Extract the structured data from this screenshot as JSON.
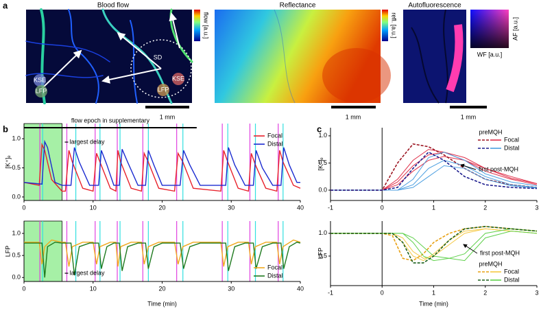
{
  "panels": [
    "a",
    "b",
    "c"
  ],
  "images": [
    {
      "title": "Blood flow",
      "colorbar": "flow [a.u.]",
      "scale": "1 mm"
    },
    {
      "title": "Reflectance",
      "colorbar": "refl. [a.u.]",
      "scale": "1 mm"
    },
    {
      "title": "Autofluorescence",
      "colorbar_y": "AF [a.u.]",
      "colorbar_x": "WF [a.u.]",
      "scale": "1 mm"
    }
  ],
  "blood_flow_labels": {
    "sd": "SD",
    "kse": [
      "KSE",
      "KSE"
    ],
    "lfp": [
      "LFP",
      "LFP"
    ]
  },
  "chart_data": [
    {
      "type": "line",
      "ylabel": "[K⁺]ₑ",
      "xlim": [
        0,
        40
      ],
      "ylim": [
        -0.06,
        1.26
      ],
      "xticks": [
        0,
        10,
        20,
        30,
        40
      ],
      "yticks": [
        {
          "value": 0,
          "label": "0.0"
        },
        {
          "value": 0.5,
          "label": "0.5"
        },
        {
          "value": 1,
          "label": "1.0"
        }
      ],
      "legend": "upper right",
      "epoch": {
        "label": "flow epoch in supplementary",
        "x": [
          0,
          25
        ]
      },
      "shade": {
        "x": [
          0,
          5.5
        ],
        "color": "#a6f0a6"
      },
      "event_lines": [
        {
          "color": "#e040e0",
          "x": [
            2.3,
            6.2,
            10.3,
            13.5,
            17.2,
            22.1,
            28.7,
            32.7,
            36.8
          ]
        },
        {
          "color": "#30e0e0",
          "x": [
            2.7,
            7.5,
            11.0,
            13.9,
            18.0,
            23.0,
            29.5,
            33.5,
            37.5
          ]
        }
      ],
      "annotation": "largest delay",
      "series": [
        {
          "name": "Focal",
          "color": "#e8202a",
          "x": [
            0,
            2.2,
            2.6,
            3.0,
            4.0,
            5.5,
            6.0,
            6.5,
            7.0,
            8.5,
            10.0,
            10.5,
            11.0,
            12.5,
            13.3,
            13.6,
            14.0,
            15.5,
            17.0,
            17.4,
            18.0,
            19.5,
            21.8,
            22.3,
            23.0,
            24.5,
            28.5,
            28.9,
            29.5,
            31.0,
            32.5,
            32.9,
            33.5,
            35.0,
            36.6,
            37.0,
            37.5,
            39.0,
            40
          ],
          "values": [
            0.25,
            0.2,
            0.9,
            0.8,
            0.3,
            0.1,
            0.1,
            0.8,
            0.6,
            0.15,
            0.1,
            0.75,
            0.6,
            0.15,
            0.1,
            0.8,
            0.6,
            0.15,
            0.1,
            0.75,
            0.6,
            0.15,
            0.1,
            0.75,
            0.6,
            0.15,
            0.1,
            0.8,
            0.6,
            0.15,
            0.1,
            0.75,
            0.55,
            0.15,
            0.1,
            0.8,
            0.6,
            0.2,
            0.15
          ]
        },
        {
          "name": "Distal",
          "color": "#1a2ad0",
          "x": [
            0,
            2.6,
            3.0,
            3.4,
            4.5,
            5.5,
            6.8,
            7.3,
            8.0,
            9.5,
            10.8,
            11.2,
            12.0,
            13.0,
            13.8,
            14.2,
            15.0,
            16.5,
            17.6,
            18.0,
            18.8,
            20.0,
            22.6,
            23.1,
            24.0,
            25.5,
            29.2,
            29.6,
            30.5,
            32.0,
            33.2,
            33.6,
            34.5,
            36.0,
            37.2,
            37.6,
            38.4,
            39.5,
            40
          ],
          "values": [
            0.25,
            0.22,
            0.95,
            0.85,
            0.25,
            0.2,
            0.2,
            0.85,
            0.6,
            0.2,
            0.2,
            0.8,
            0.55,
            0.2,
            0.2,
            0.82,
            0.6,
            0.2,
            0.2,
            0.8,
            0.55,
            0.2,
            0.2,
            0.8,
            0.55,
            0.2,
            0.2,
            0.85,
            0.55,
            0.2,
            0.2,
            0.8,
            0.5,
            0.2,
            0.2,
            0.85,
            0.55,
            0.25,
            0.25
          ]
        }
      ]
    },
    {
      "type": "line",
      "ylabel": "LFP",
      "xlabel": "Time (min)",
      "xlim": [
        0,
        40
      ],
      "ylim": [
        -0.09,
        1.28
      ],
      "xticks": [
        0,
        10,
        20,
        30,
        40
      ],
      "yticks": [
        {
          "value": 0,
          "label": "0.0"
        },
        {
          "value": 0.5,
          "label": "0.5"
        },
        {
          "value": 1,
          "label": "1.0"
        }
      ],
      "legend": "lower right",
      "shade": {
        "x": [
          0,
          5.5
        ],
        "color": "#a6f0a6"
      },
      "event_lines": [
        {
          "color": "#e040e0",
          "x": [
            2.3,
            6.2,
            10.3,
            13.5,
            17.2,
            22.1,
            28.7,
            32.7,
            36.8
          ]
        },
        {
          "color": "#30e0e0",
          "x": [
            2.7,
            7.5,
            11.0,
            13.9,
            18.0,
            23.0,
            29.5,
            33.5,
            37.5
          ]
        }
      ],
      "annotation": "largest delay",
      "series": [
        {
          "name": "Focal",
          "color": "#f0a81c",
          "x": [
            0,
            2.2,
            2.6,
            3.0,
            4.0,
            5.5,
            6.0,
            6.5,
            7.0,
            8.5,
            10.0,
            10.5,
            11.0,
            12.5,
            13.3,
            13.6,
            14.0,
            15.5,
            17.0,
            17.4,
            18.0,
            19.5,
            21.8,
            22.3,
            23.0,
            24.5,
            28.5,
            28.9,
            29.5,
            31.0,
            32.5,
            32.9,
            33.5,
            35.0,
            36.6,
            37.0,
            37.5,
            39.0,
            40
          ],
          "values": [
            0.8,
            0.8,
            0.3,
            0.7,
            0.85,
            0.8,
            0.8,
            0.25,
            0.7,
            0.8,
            0.8,
            0.3,
            0.7,
            0.8,
            0.8,
            0.25,
            0.7,
            0.8,
            0.8,
            0.3,
            0.7,
            0.8,
            0.8,
            0.3,
            0.7,
            0.8,
            0.8,
            0.25,
            0.7,
            0.8,
            0.8,
            0.3,
            0.7,
            0.8,
            0.8,
            0.3,
            0.7,
            0.85,
            0.8
          ]
        },
        {
          "name": "Distal",
          "color": "#1e7a1e",
          "x": [
            0,
            2.6,
            3.0,
            3.4,
            4.5,
            5.5,
            6.8,
            7.3,
            8.0,
            9.5,
            10.8,
            11.2,
            12.0,
            13.0,
            13.8,
            14.2,
            15.0,
            16.5,
            17.6,
            18.0,
            18.8,
            20.0,
            22.6,
            23.1,
            24.0,
            25.5,
            29.2,
            29.6,
            30.5,
            32.0,
            33.2,
            33.6,
            34.5,
            36.0,
            37.2,
            37.6,
            38.4,
            39.5,
            40
          ],
          "values": [
            0.78,
            0.78,
            0.0,
            0.7,
            0.8,
            0.78,
            0.78,
            0.05,
            0.7,
            0.78,
            0.78,
            0.2,
            0.7,
            0.78,
            0.78,
            0.15,
            0.7,
            0.78,
            0.78,
            0.2,
            0.7,
            0.78,
            0.78,
            0.2,
            0.7,
            0.78,
            0.78,
            0.15,
            0.7,
            0.78,
            0.78,
            0.2,
            0.7,
            0.78,
            0.78,
            0.2,
            0.7,
            0.8,
            0.78
          ]
        }
      ]
    },
    {
      "type": "traces",
      "ylabel": "[K⁺]ₑ",
      "xlim": [
        -1,
        3
      ],
      "ylim": [
        -0.19,
        1.15
      ],
      "xticks": [
        -1,
        0,
        1,
        2,
        3
      ],
      "yticks": [
        {
          "value": 0,
          "label": "0.0"
        },
        {
          "value": 0.5,
          "label": "0.5"
        },
        {
          "value": 1,
          "label": "1.0"
        }
      ],
      "legend": "upper right",
      "legend_columns": [
        "pre",
        "MQH"
      ],
      "annotation": "first post-MQH",
      "x": [
        -1,
        0,
        0.3,
        0.6,
        0.9,
        1.2,
        1.6,
        2,
        2.5,
        3
      ],
      "series": [
        {
          "name": "Focal",
          "pre_color": "#9b1420",
          "color": "#e0304a",
          "pre": [
            0,
            0,
            0.5,
            0.85,
            0.8,
            0.65,
            0.4,
            0.2,
            0.1,
            0.05
          ],
          "traces": [
            [
              0,
              0,
              0.2,
              0.55,
              0.75,
              0.7,
              0.55,
              0.35,
              0.2,
              0.1
            ],
            [
              0,
              0,
              0.15,
              0.45,
              0.65,
              0.7,
              0.6,
              0.4,
              0.22,
              0.12
            ],
            [
              0,
              0,
              0.1,
              0.35,
              0.55,
              0.62,
              0.55,
              0.4,
              0.25,
              0.12
            ]
          ]
        },
        {
          "name": "Distal",
          "pre_color": "#1a1a8c",
          "color": "#4a9ee0",
          "pre": [
            0,
            0,
            0.05,
            0.4,
            0.7,
            0.55,
            0.25,
            0.1,
            0.05,
            0.03
          ],
          "traces": [
            [
              0,
              0,
              0,
              0.2,
              0.6,
              0.7,
              0.55,
              0.3,
              0.15,
              0.08
            ],
            [
              0,
              0,
              0,
              0.1,
              0.4,
              0.55,
              0.45,
              0.25,
              0.1,
              0.05
            ],
            [
              0,
              0,
              0,
              0.05,
              0.25,
              0.45,
              0.4,
              0.2,
              0.08,
              0.04
            ]
          ]
        }
      ]
    },
    {
      "type": "traces",
      "ylabel": "LFP",
      "xlabel": "Time (min)",
      "xlim": [
        -1,
        3
      ],
      "ylim": [
        -0.15,
        1.27
      ],
      "xticks": [
        -1,
        0,
        1,
        2,
        3
      ],
      "yticks": [
        {
          "value": 0.5,
          "label": "0.5"
        },
        {
          "value": 1,
          "label": "1.0"
        }
      ],
      "legend": "lower right",
      "legend_columns": [
        "pre",
        "MQH"
      ],
      "annotation": "first post-MQH",
      "x": [
        -1,
        0,
        0.2,
        0.4,
        0.6,
        0.8,
        1.0,
        1.3,
        1.6,
        2,
        2.5,
        3
      ],
      "series": [
        {
          "name": "Focal",
          "pre_color": "#e8a010",
          "color": "#f5c842",
          "pre": [
            1,
            1,
            0.95,
            0.45,
            0.4,
            0.55,
            0.8,
            1.0,
            1.1,
            1.15,
            1.1,
            1.05
          ],
          "traces": [
            [
              1,
              1,
              1,
              0.8,
              0.5,
              0.4,
              0.55,
              0.85,
              1.05,
              1.1,
              1.05,
              1.0
            ],
            [
              1,
              1,
              1,
              0.9,
              0.6,
              0.45,
              0.5,
              0.75,
              1.0,
              1.1,
              1.05,
              1.0
            ]
          ]
        },
        {
          "name": "Distal",
          "pre_color": "#1a5e1a",
          "color": "#5ed04a",
          "pre": [
            1,
            1,
            1,
            0.8,
            0.35,
            0.35,
            0.5,
            0.85,
            1.1,
            1.15,
            1.1,
            1.05
          ],
          "traces": [
            [
              1,
              1,
              1,
              1,
              0.8,
              0.5,
              0.4,
              0.45,
              0.55,
              1.0,
              1.1,
              1.05
            ],
            [
              1,
              1,
              1,
              1,
              0.9,
              0.7,
              0.5,
              0.45,
              0.4,
              0.9,
              1.05,
              1.0
            ]
          ]
        }
      ]
    }
  ]
}
